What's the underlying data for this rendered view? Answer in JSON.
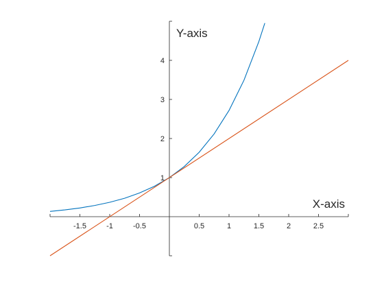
{
  "chart_data": {
    "type": "line",
    "title": "",
    "xlabel": "X-axis",
    "ylabel": "Y-axis",
    "xlim": [
      -2,
      3
    ],
    "ylim": [
      -1,
      5
    ],
    "grid": false,
    "x_ticks": [
      {
        "value": -1.5,
        "label": "-1.5"
      },
      {
        "value": -1,
        "label": "-1"
      },
      {
        "value": -0.5,
        "label": "-0.5"
      },
      {
        "value": 0.5,
        "label": "0.5"
      },
      {
        "value": 1,
        "label": "1"
      },
      {
        "value": 1.5,
        "label": "1.5"
      },
      {
        "value": 2,
        "label": "2"
      },
      {
        "value": 2.5,
        "label": "2.5"
      }
    ],
    "y_ticks": [
      {
        "value": 1,
        "label": "1"
      },
      {
        "value": 2,
        "label": "2"
      },
      {
        "value": 3,
        "label": "3"
      },
      {
        "value": 4,
        "label": "4"
      }
    ],
    "series": [
      {
        "color": "#0072BD",
        "x": [
          -2,
          -1.75,
          -1.5,
          -1.25,
          -1,
          -0.75,
          -0.5,
          -0.25,
          0,
          0.25,
          0.5,
          0.75,
          1,
          1.25,
          1.5,
          1.6
        ],
        "y": [
          0.135,
          0.174,
          0.223,
          0.287,
          0.368,
          0.472,
          0.607,
          0.779,
          1,
          1.284,
          1.649,
          2.117,
          2.718,
          3.49,
          4.482,
          4.953
        ]
      },
      {
        "color": "#D95319",
        "x": [
          -2,
          3
        ],
        "y": [
          -1,
          4
        ]
      }
    ]
  }
}
